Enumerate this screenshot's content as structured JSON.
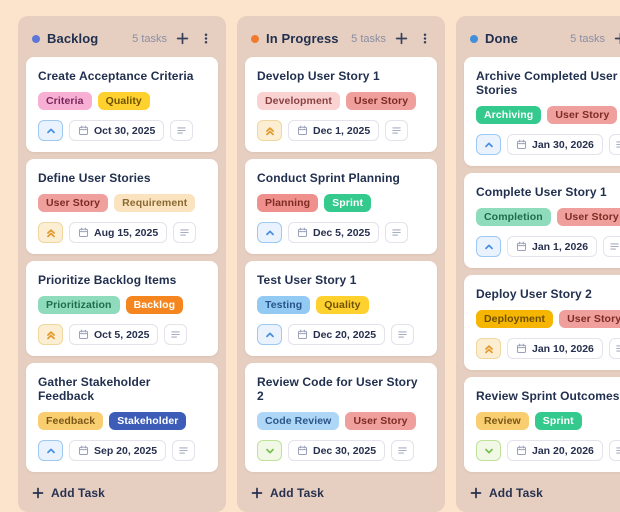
{
  "colors": {
    "page_background": "#FCE3CB",
    "column_background": "#E6CFC1",
    "card_background": "#FFFFFF",
    "title_text": "#22304F",
    "muted_text": "#8A8EA3"
  },
  "priority_styles": {
    "medium": {
      "icon": "chevron-up-icon",
      "color": "#4A8FE0",
      "bg": "#EAF3FD",
      "border": "#9EC9F2"
    },
    "high": {
      "icon": "chevrons-up-icon",
      "color": "#E39A2E",
      "bg": "#FBEED3",
      "border": "#F0D79F"
    },
    "low": {
      "icon": "chevron-down-icon",
      "color": "#7BC153",
      "bg": "#F1F9E6",
      "border": "#BFE29B"
    }
  },
  "board": {
    "add_task_label": "Add Task",
    "icons": {
      "add_column_card": "plus-icon",
      "column_menu": "kebab-menu-icon",
      "due_date": "calendar-icon",
      "description": "notes-icon"
    },
    "columns": [
      {
        "name": "Backlog",
        "dot_color": "#5C77D8",
        "task_count": "5 tasks",
        "cards": [
          {
            "title": "Create Acceptance Criteria",
            "tags": [
              {
                "label": "Criteria",
                "bg": "#F7AFD4",
                "fg": "#79275B"
              },
              {
                "label": "Quality",
                "bg": "#FFD12E",
                "fg": "#6E5200"
              }
            ],
            "priority": "medium",
            "date": "Oct 30, 2025"
          },
          {
            "title": "Define User Stories",
            "tags": [
              {
                "label": "User Story",
                "bg": "#F0A09C",
                "fg": "#7E2B25"
              },
              {
                "label": "Requirement",
                "bg": "#FAE3BE",
                "fg": "#8A6A32"
              }
            ],
            "priority": "high",
            "date": "Aug 15, 2025"
          },
          {
            "title": "Prioritize Backlog Items",
            "tags": [
              {
                "label": "Prioritization",
                "bg": "#8FDCBC",
                "fg": "#1F6B4E"
              },
              {
                "label": "Backlog",
                "bg": "#F5861F",
                "fg": "#FFFFFF"
              }
            ],
            "priority": "high",
            "date": "Oct 5, 2025"
          },
          {
            "title": "Gather Stakeholder Feedback",
            "tags": [
              {
                "label": "Feedback",
                "bg": "#F8CE70",
                "fg": "#7A5618"
              },
              {
                "label": "Stakeholder",
                "bg": "#3D5CB8",
                "fg": "#FFFFFF"
              }
            ],
            "priority": "medium",
            "date": "Sep 20, 2025"
          }
        ]
      },
      {
        "name": "In Progress",
        "dot_color": "#F07B30",
        "task_count": "5 tasks",
        "cards": [
          {
            "title": "Develop User Story 1",
            "tags": [
              {
                "label": "Development",
                "bg": "#FAD2D2",
                "fg": "#8A4242"
              },
              {
                "label": "User Story",
                "bg": "#F0A09C",
                "fg": "#7E2B25"
              }
            ],
            "priority": "high",
            "date": "Dec 1, 2025"
          },
          {
            "title": "Conduct Sprint Planning",
            "tags": [
              {
                "label": "Planning",
                "bg": "#F0908C",
                "fg": "#7E2B25"
              },
              {
                "label": "Sprint",
                "bg": "#34C98D",
                "fg": "#FFFFFF"
              }
            ],
            "priority": "medium",
            "date": "Dec 5, 2025"
          },
          {
            "title": "Test User Story 1",
            "tags": [
              {
                "label": "Testing",
                "bg": "#93CAF3",
                "fg": "#27538A"
              },
              {
                "label": "Quality",
                "bg": "#FFD12E",
                "fg": "#6E5200"
              }
            ],
            "priority": "medium",
            "date": "Dec 20, 2025"
          },
          {
            "title": "Review Code for User Story 2",
            "tags": [
              {
                "label": "Code Review",
                "bg": "#AED6F6",
                "fg": "#2B5687"
              },
              {
                "label": "User Story",
                "bg": "#F0A09C",
                "fg": "#7E2B25"
              }
            ],
            "priority": "low",
            "date": "Dec 30, 2025"
          }
        ]
      },
      {
        "name": "Done",
        "dot_color": "#418FD9",
        "task_count": "5 tasks",
        "cards": [
          {
            "title": "Archive Completed User Stories",
            "tags": [
              {
                "label": "Archiving",
                "bg": "#34C98D",
                "fg": "#FFFFFF"
              },
              {
                "label": "User Story",
                "bg": "#F0A09C",
                "fg": "#7E2B25"
              }
            ],
            "priority": "medium",
            "date": "Jan 30, 2026"
          },
          {
            "title": "Complete User Story 1",
            "tags": [
              {
                "label": "Completion",
                "bg": "#8FDCBC",
                "fg": "#1F6B4E"
              },
              {
                "label": "User Story",
                "bg": "#F0A09C",
                "fg": "#7E2B25"
              }
            ],
            "priority": "medium",
            "date": "Jan 1, 2026"
          },
          {
            "title": "Deploy User Story 2",
            "tags": [
              {
                "label": "Deployment",
                "bg": "#F5B501",
                "fg": "#6E4E00"
              },
              {
                "label": "User Story",
                "bg": "#F0A09C",
                "fg": "#7E2B25"
              }
            ],
            "priority": "high",
            "date": "Jan 10, 2026"
          },
          {
            "title": "Review Sprint Outcomes",
            "tags": [
              {
                "label": "Review",
                "bg": "#F8CE70",
                "fg": "#7A5618"
              },
              {
                "label": "Sprint",
                "bg": "#34C98D",
                "fg": "#FFFFFF"
              }
            ],
            "priority": "low",
            "date": "Jan 20, 2026"
          }
        ]
      }
    ]
  }
}
